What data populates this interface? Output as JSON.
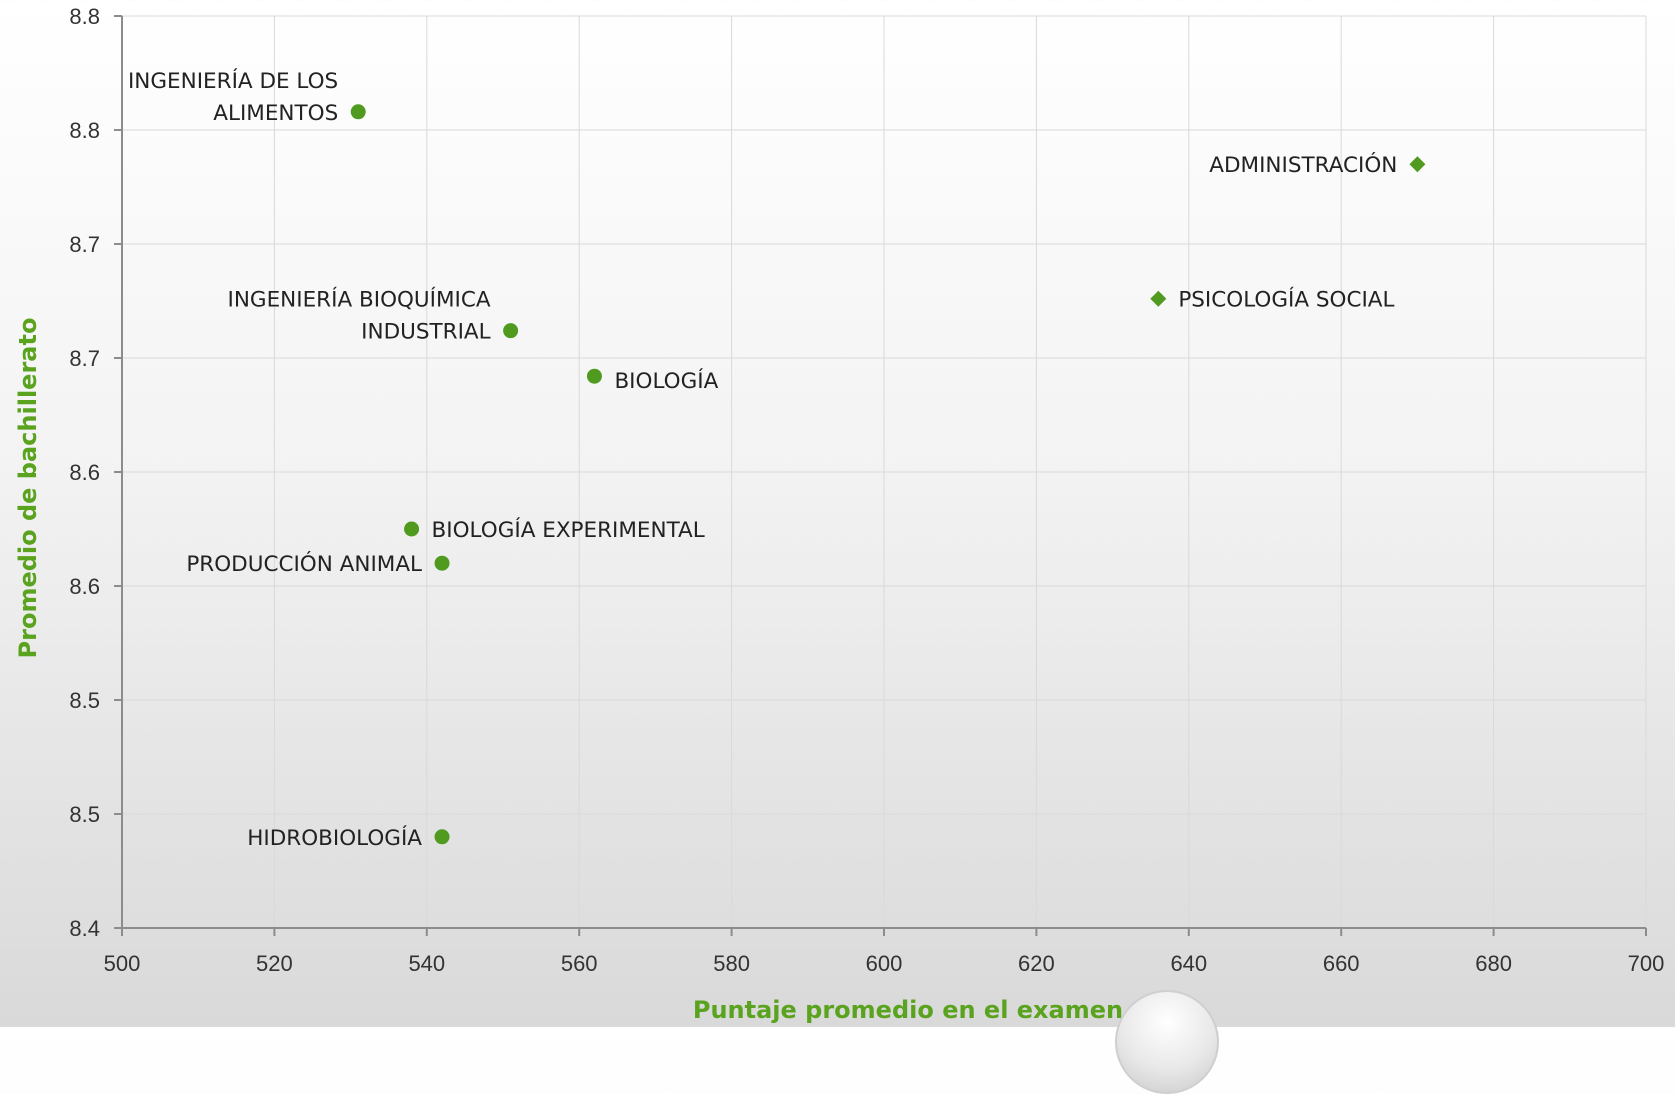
{
  "chart_data": {
    "type": "scatter",
    "title": "",
    "xlabel": "Puntaje promedio en el examen",
    "ylabel": "Promedio de bachillerato",
    "axis_title_color": "#5aa31f",
    "marker_color": "#4f9a1f",
    "xlim": [
      500,
      700
    ],
    "ylim": [
      8.4,
      8.8
    ],
    "x_ticks": [
      500,
      520,
      540,
      560,
      580,
      600,
      620,
      640,
      660,
      680,
      700
    ],
    "y_ticks": [
      8.4,
      8.45,
      8.5,
      8.55,
      8.6,
      8.65,
      8.7,
      8.75,
      8.8
    ],
    "y_tick_labels": [
      "8.4",
      "8.5",
      "8.5",
      "8.6",
      "8.6",
      "8.7",
      "8.7",
      "8.8",
      "8.8"
    ],
    "grid": true,
    "series": [
      {
        "marker": "circle",
        "points": [
          {
            "label": "INGENIERÍA DE LOS ALIMENTOS",
            "label_lines": [
              "INGENIERÍA DE LOS",
              "ALIMENTOS"
            ],
            "x": 531,
            "y": 8.758,
            "label_side": "left"
          },
          {
            "label": "INGENIERÍA BIOQUÍMICA INDUSTRIAL",
            "label_lines": [
              "INGENIERÍA BIOQUÍMICA",
              "INDUSTRIAL"
            ],
            "x": 551,
            "y": 8.662,
            "label_side": "left"
          },
          {
            "label": "BIOLOGÍA",
            "label_lines": [
              "BIOLOGÍA"
            ],
            "x": 562,
            "y": 8.642,
            "label_side": "right-below"
          },
          {
            "label": "BIOLOGÍA EXPERIMENTAL",
            "label_lines": [
              "BIOLOGÍA EXPERIMENTAL"
            ],
            "x": 538,
            "y": 8.575,
            "label_side": "right"
          },
          {
            "label": "PRODUCCIÓN ANIMAL",
            "label_lines": [
              "PRODUCCIÓN ANIMAL"
            ],
            "x": 542,
            "y": 8.56,
            "label_side": "left"
          },
          {
            "label": "HIDROBIOLOGÍA",
            "label_lines": [
              "HIDROBIOLOGÍA"
            ],
            "x": 542,
            "y": 8.44,
            "label_side": "left"
          }
        ]
      },
      {
        "marker": "diamond",
        "points": [
          {
            "label": "ADMINISTRACIÓN",
            "label_lines": [
              "ADMINISTRACIÓN"
            ],
            "x": 670,
            "y": 8.735,
            "label_side": "left"
          },
          {
            "label": "PSICOLOGÍA SOCIAL",
            "label_lines": [
              "PSICOLOGÍA SOCIAL"
            ],
            "x": 636,
            "y": 8.676,
            "label_side": "right"
          }
        ]
      }
    ]
  }
}
